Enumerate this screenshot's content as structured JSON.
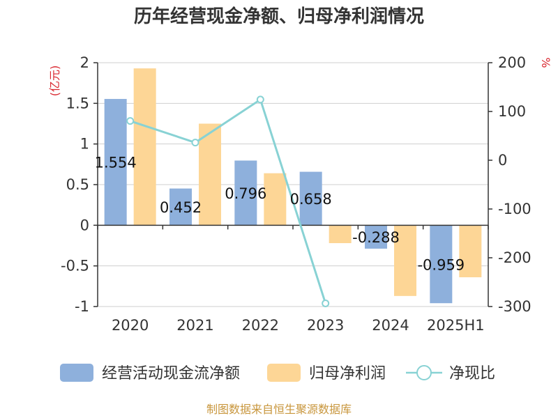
{
  "chart_data": {
    "type": "bar",
    "title": "历年经营现金净额、归母净利润情况",
    "categories": [
      "2020",
      "2021",
      "2022",
      "2023",
      "2024",
      "2025H1"
    ],
    "left_axis": {
      "unit": "(亿元)",
      "ylim": [
        -1,
        2
      ],
      "ticks": [
        "2",
        "1.5",
        "1",
        "0.5",
        "0",
        "-0.5",
        "-1"
      ],
      "tick_values": [
        2,
        1.5,
        1,
        0.5,
        0,
        -0.5,
        -1
      ]
    },
    "right_axis": {
      "unit": "%",
      "ylim": [
        -300,
        200
      ],
      "ticks": [
        "200",
        "100",
        "0",
        "-100",
        "-200",
        "-300"
      ],
      "tick_values": [
        200,
        100,
        0,
        -100,
        -200,
        -300
      ]
    },
    "series": [
      {
        "name": "经营活动现金流净额",
        "kind": "bar",
        "axis": "left",
        "color": "#8eb0dc",
        "values": [
          1.554,
          0.452,
          0.796,
          0.658,
          -0.288,
          -0.959
        ],
        "labels": [
          "1.554",
          "0.452",
          "0.796",
          "0.658",
          "-0.288",
          "-0.959"
        ]
      },
      {
        "name": "归母净利润",
        "kind": "bar",
        "axis": "left",
        "color": "#fdd696",
        "values": [
          1.93,
          1.25,
          0.64,
          -0.22,
          -0.87,
          -0.64
        ]
      },
      {
        "name": "净现比",
        "kind": "line",
        "axis": "right",
        "color": "#88d2d4",
        "values": [
          80.5,
          36.2,
          124.4,
          -293.5,
          null,
          null
        ]
      }
    ],
    "grid": true,
    "legend": "bottom"
  },
  "source": "制图数据来自恒生聚源数据库"
}
